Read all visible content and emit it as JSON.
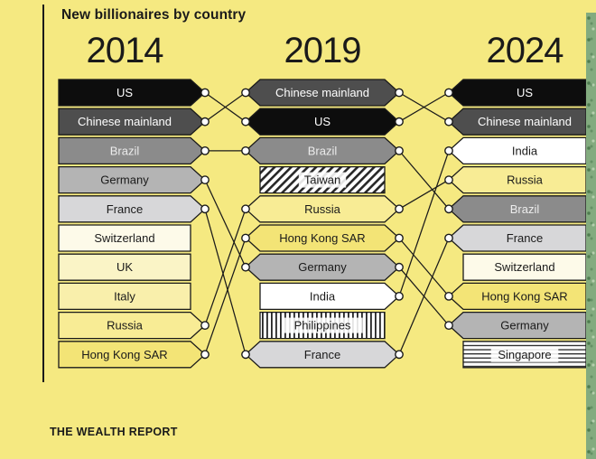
{
  "title": "New billionaires by country",
  "footer": "THE WEALTH REPORT",
  "colors": {
    "background": "#f5e981",
    "ink": "#1a1a1a",
    "connector_dot_fill": "#ffffff",
    "edge_strip_green": "#83ab7f"
  },
  "chart_data": {
    "type": "bump-rank",
    "title": "New billionaires by country",
    "source": "THE WEALTH REPORT",
    "years": [
      "2014",
      "2019",
      "2024"
    ],
    "ranks_shown": 10,
    "rankings": {
      "y2014": [
        "US",
        "Chinese mainland",
        "Brazil",
        "Germany",
        "France",
        "Switzerland",
        "UK",
        "Italy",
        "Russia",
        "Hong Kong SAR"
      ],
      "y2019": [
        "Chinese mainland",
        "US",
        "Brazil",
        "Taiwan",
        "Russia",
        "Hong Kong SAR",
        "Germany",
        "India",
        "Philippines",
        "France"
      ],
      "y2024": [
        "US",
        "Chinese mainland",
        "India",
        "Russia",
        "Brazil",
        "France",
        "Switzerland",
        "Hong Kong SAR",
        "Germany",
        "Singapore"
      ]
    },
    "country_styles": {
      "US": {
        "fill": "#0d0d0d",
        "text": "#ffffff"
      },
      "Chinese mainland": {
        "fill": "#4e4e4e",
        "text": "#ffffff"
      },
      "Brazil": {
        "fill": "#8b8b8b",
        "text": "#ececec"
      },
      "Germany": {
        "fill": "#b4b4b4",
        "text": "#1a1a1a"
      },
      "France": {
        "fill": "#d7d7d9",
        "text": "#1a1a1a"
      },
      "Switzerland": {
        "fill": "#fdfae9",
        "text": "#1a1a1a"
      },
      "UK": {
        "fill": "#faf4c6",
        "text": "#1a1a1a"
      },
      "Italy": {
        "fill": "#f9efab",
        "text": "#1a1a1a"
      },
      "Russia": {
        "fill": "#f8ec95",
        "text": "#1a1a1a"
      },
      "Hong Kong SAR": {
        "fill": "#f3e476",
        "text": "#1a1a1a"
      },
      "India": {
        "fill": "#ffffff",
        "text": "#1a1a1a"
      },
      "Taiwan": {
        "pattern": "diagonal",
        "text": "#1a1a1a"
      },
      "Philippines": {
        "pattern": "vertical",
        "text": "#1a1a1a"
      },
      "Singapore": {
        "pattern": "horizontal",
        "text": "#1a1a1a"
      }
    }
  }
}
